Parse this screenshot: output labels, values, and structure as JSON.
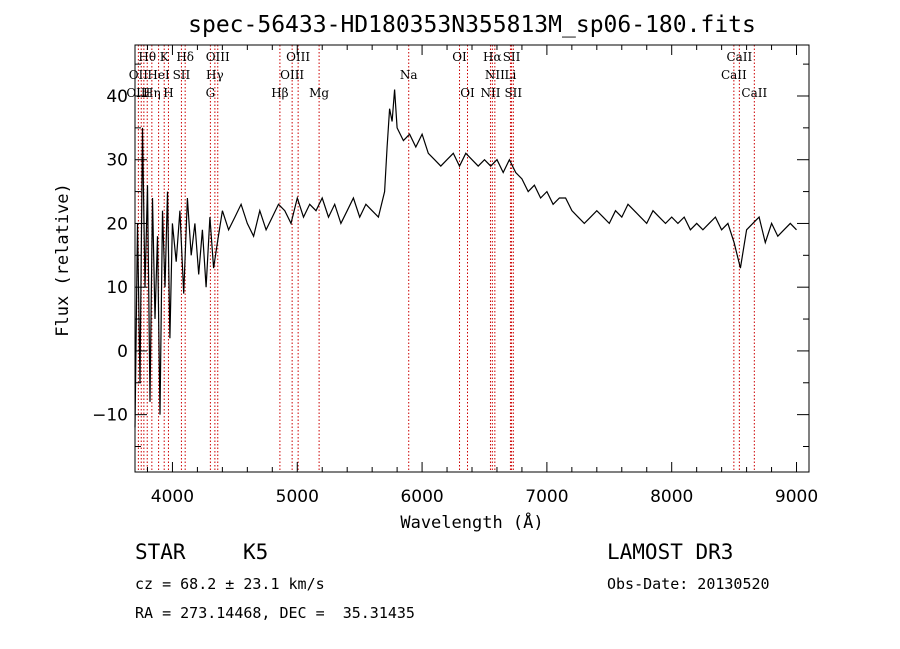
{
  "chart_data": {
    "type": "line",
    "title": "spec-56433-HD180353N355813M_sp06-180.fits",
    "xlabel": "Wavelength (Å)",
    "ylabel": "Flux (relative)",
    "xlim": [
      3700,
      9100
    ],
    "ylim": [
      -19,
      48
    ],
    "xticks": [
      4000,
      5000,
      6000,
      7000,
      8000,
      9000
    ],
    "yticks": [
      -10,
      0,
      10,
      20,
      30,
      40
    ],
    "grid": false,
    "series": [
      {
        "name": "flux",
        "x": [
          3700,
          3720,
          3740,
          3760,
          3780,
          3800,
          3820,
          3840,
          3860,
          3880,
          3900,
          3920,
          3940,
          3960,
          3980,
          4000,
          4030,
          4060,
          4090,
          4120,
          4150,
          4180,
          4210,
          4240,
          4270,
          4300,
          4330,
          4360,
          4400,
          4450,
          4500,
          4550,
          4600,
          4650,
          4700,
          4750,
          4800,
          4850,
          4900,
          4950,
          5000,
          5050,
          5100,
          5150,
          5200,
          5250,
          5300,
          5350,
          5400,
          5450,
          5500,
          5550,
          5600,
          5650,
          5700,
          5720,
          5740,
          5760,
          5780,
          5800,
          5850,
          5900,
          5950,
          6000,
          6050,
          6100,
          6150,
          6200,
          6250,
          6300,
          6350,
          6400,
          6450,
          6500,
          6550,
          6600,
          6650,
          6700,
          6750,
          6800,
          6850,
          6900,
          6950,
          7000,
          7050,
          7100,
          7150,
          7200,
          7250,
          7300,
          7350,
          7400,
          7450,
          7500,
          7550,
          7600,
          7650,
          7700,
          7750,
          7800,
          7850,
          7900,
          7950,
          8000,
          8050,
          8100,
          8150,
          8200,
          8250,
          8300,
          8350,
          8400,
          8450,
          8500,
          8550,
          8600,
          8650,
          8700,
          8750,
          8800,
          8850,
          8900,
          8950,
          9000
        ],
        "y": [
          -12,
          20,
          -5,
          35,
          10,
          26,
          -8,
          24,
          5,
          18,
          -10,
          22,
          10,
          25,
          2,
          20,
          14,
          22,
          9,
          24,
          15,
          20,
          12,
          19,
          10,
          21,
          13,
          17,
          22,
          19,
          21,
          23,
          20,
          18,
          22,
          19,
          21,
          23,
          22,
          20,
          24,
          21,
          23,
          22,
          24,
          21,
          23,
          20,
          22,
          24,
          21,
          23,
          22,
          21,
          25,
          32,
          38,
          36,
          41,
          35,
          33,
          34,
          32,
          34,
          31,
          30,
          29,
          30,
          31,
          29,
          31,
          30,
          29,
          30,
          29,
          30,
          28,
          30,
          28,
          27,
          25,
          26,
          24,
          25,
          23,
          24,
          24,
          22,
          21,
          20,
          21,
          22,
          21,
          20,
          22,
          21,
          23,
          22,
          21,
          20,
          22,
          21,
          20,
          21,
          20,
          21,
          19,
          20,
          19,
          20,
          21,
          19,
          20,
          17,
          13,
          19,
          20,
          21,
          17,
          20,
          18,
          19,
          20,
          19
        ]
      }
    ],
    "line_labels": [
      {
        "name": "Hθ",
        "x": 3798,
        "row": 1
      },
      {
        "name": "K",
        "x": 3934,
        "row": 1
      },
      {
        "name": "Hδ",
        "x": 4102,
        "row": 1
      },
      {
        "name": "OIII",
        "x": 4363,
        "row": 1
      },
      {
        "name": "OIII",
        "x": 5007,
        "row": 1
      },
      {
        "name": "OI",
        "x": 6300,
        "row": 1
      },
      {
        "name": "Hα",
        "x": 6563,
        "row": 1
      },
      {
        "name": "SII",
        "x": 6717,
        "row": 1
      },
      {
        "name": "CaII",
        "x": 8542,
        "row": 1
      },
      {
        "name": "OII",
        "x": 3727,
        "row": 2
      },
      {
        "name": "HeI",
        "x": 3889,
        "row": 2
      },
      {
        "name": "SII",
        "x": 4072,
        "row": 2
      },
      {
        "name": "Hγ",
        "x": 4340,
        "row": 2
      },
      {
        "name": "OIII",
        "x": 4959,
        "row": 2
      },
      {
        "name": "Na",
        "x": 5893,
        "row": 2
      },
      {
        "name": "NII",
        "x": 6583,
        "row": 2
      },
      {
        "name": "Li",
        "x": 6708,
        "row": 2
      },
      {
        "name": "CaII",
        "x": 8498,
        "row": 2
      },
      {
        "name": "OIII",
        "x": 3727,
        "row": 3
      },
      {
        "name": "Hη",
        "x": 3835,
        "row": 3
      },
      {
        "name": "H",
        "x": 3968,
        "row": 3
      },
      {
        "name": "G",
        "x": 4304,
        "row": 3
      },
      {
        "name": "Hβ",
        "x": 4861,
        "row": 3
      },
      {
        "name": "Mg",
        "x": 5175,
        "row": 3
      },
      {
        "name": "OI",
        "x": 6364,
        "row": 3
      },
      {
        "name": "NII",
        "x": 6548,
        "row": 3
      },
      {
        "name": "SII",
        "x": 6731,
        "row": 3
      },
      {
        "name": "CaII",
        "x": 8662,
        "row": 3
      }
    ],
    "marker_lines": [
      3727,
      3750,
      3771,
      3798,
      3835,
      3889,
      3934,
      3968,
      4072,
      4102,
      4304,
      4340,
      4363,
      4861,
      4959,
      5007,
      5175,
      5893,
      6300,
      6364,
      6548,
      6563,
      6583,
      6708,
      6717,
      6731,
      8498,
      8542,
      8662
    ],
    "colors": {
      "spectrum": "#000000",
      "markers": "#cc0000",
      "axes": "#000000"
    }
  },
  "info": {
    "object_class": "STAR",
    "subclass": "K5",
    "survey": "LAMOST DR3",
    "velocity": "cz = 68.2 ± 23.1 km/s",
    "obs_date": "Obs-Date: 20130520",
    "coords": "RA = 273.14468, DEC =  35.31435"
  }
}
